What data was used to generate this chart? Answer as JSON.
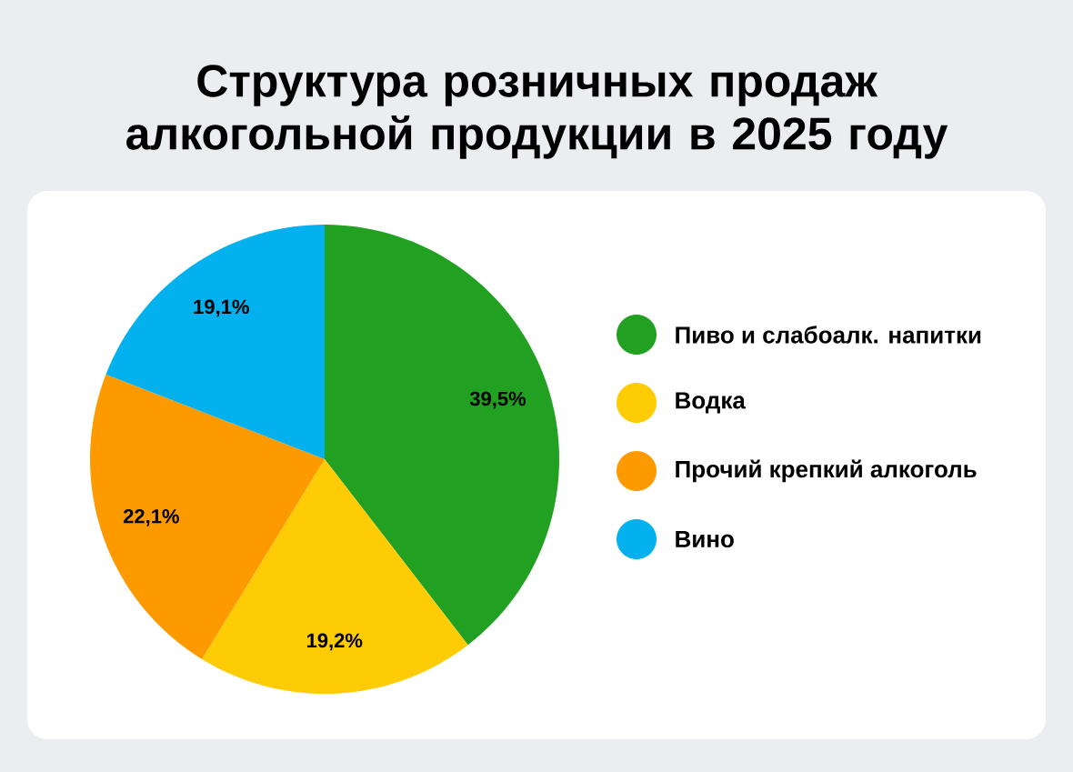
{
  "chart_data": {
    "type": "pie",
    "title": "Структура розничных продаж алкогольной продукции в 2025 году",
    "categories": [
      "Пиво и слабоалк. напитки",
      "Водка",
      "Прочий крепкий алкоголь",
      "Вино"
    ],
    "values": [
      39.5,
      19.2,
      22.1,
      19.1
    ],
    "value_labels": [
      "39,5%",
      "19,2%",
      "22,1%",
      "19,1%"
    ],
    "colors": [
      "#21a021",
      "#fdcc05",
      "#fd9a00",
      "#02b1ee"
    ],
    "legend": "right"
  }
}
